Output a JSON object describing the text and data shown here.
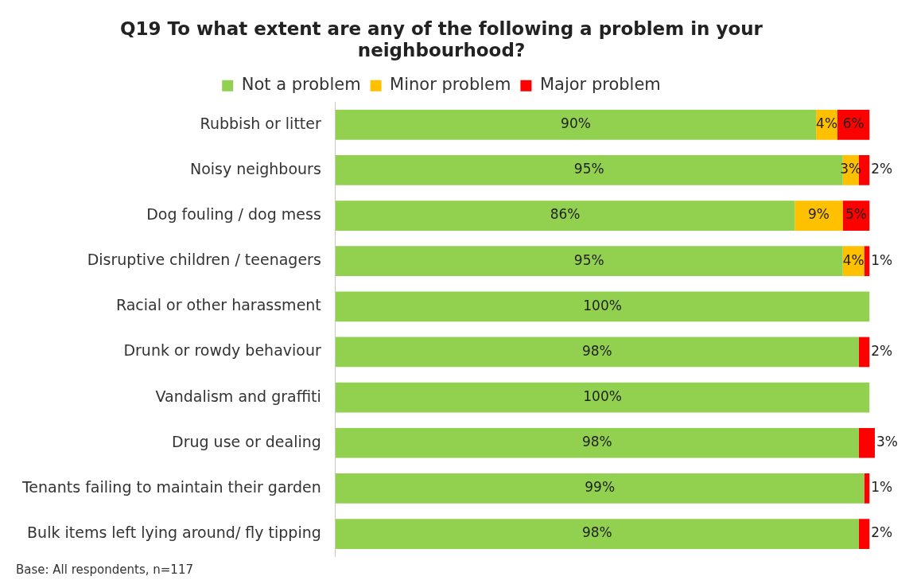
{
  "chart_data": {
    "type": "bar",
    "orientation": "horizontal",
    "stacked": true,
    "title": "Q19 To what extent are any of the following a problem in your neighbourhood?",
    "categories": [
      "Rubbish or litter",
      "Noisy neighbours",
      "Dog fouling / dog mess",
      "Disruptive children / teenagers",
      "Racial or other harassment",
      "Drunk or rowdy behaviour",
      "Vandalism and graffiti",
      "Drug use or dealing",
      "Tenants failing to maintain their garden",
      "Bulk items left lying around/ fly tipping"
    ],
    "series": [
      {
        "name": "Not a problem",
        "color": "#92d050",
        "values": [
          90,
          95,
          86,
          95,
          100,
          98,
          100,
          98,
          99,
          98
        ],
        "value_labels": [
          "90%",
          "95%",
          "86%",
          "95%",
          "100%",
          "98%",
          "100%",
          "98%",
          "99%",
          "98%"
        ]
      },
      {
        "name": "Minor problem",
        "color": "#ffc000",
        "values": [
          4,
          3,
          9,
          4,
          0,
          0,
          0,
          0,
          0,
          0
        ],
        "value_labels": [
          "4%",
          "3%",
          "9%",
          "4%",
          null,
          null,
          null,
          null,
          null,
          null
        ]
      },
      {
        "name": "Major problem",
        "color": "#ff0000",
        "values": [
          6,
          2,
          5,
          1,
          0,
          2,
          0,
          3,
          1,
          2
        ],
        "value_labels": [
          "6%",
          "2%",
          "5%",
          "1%",
          null,
          "2%",
          null,
          "3%",
          "1%",
          "2%"
        ]
      }
    ],
    "legend": "top",
    "annotations": [
      "Base: All respondents, n=117"
    ]
  }
}
